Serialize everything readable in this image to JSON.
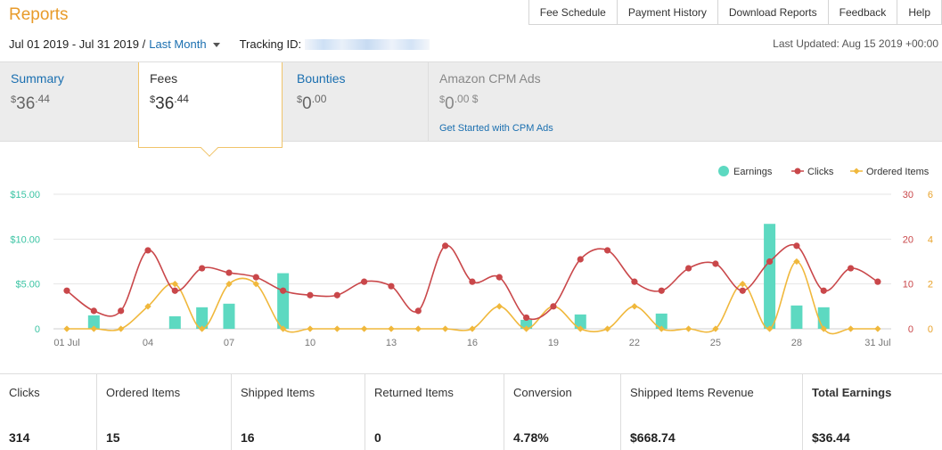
{
  "page_title": "Reports",
  "top_nav": [
    "Fee Schedule",
    "Payment History",
    "Download Reports",
    "Feedback",
    "Help"
  ],
  "date_range": {
    "range": "Jul 01 2019 - Jul 31 2019 /",
    "preset": "Last Month"
  },
  "tracking": {
    "label": "Tracking ID:"
  },
  "last_updated": "Last Updated: Aug 15 2019 +00:00",
  "tabs": {
    "summary": {
      "label": "Summary",
      "currency": "$",
      "dollars": "36",
      "cents": ".44"
    },
    "fees": {
      "label": "Fees",
      "currency": "$",
      "dollars": "36",
      "cents": ".44"
    },
    "bounties": {
      "label": "Bounties",
      "currency": "$",
      "dollars": "0",
      "cents": ".00"
    },
    "cpm": {
      "label": "Amazon CPM Ads",
      "currency": "$",
      "dollars": "0",
      "cents": ".00 $",
      "link": "Get Started with CPM Ads"
    }
  },
  "chart_data": {
    "type": "bar",
    "legend_placement": "top-right",
    "legend": [
      "Earnings",
      "Clicks",
      "Ordered Items"
    ],
    "colors": {
      "earnings": "#5dd9c1",
      "clicks": "#c9474a",
      "ordered": "#f0b83c"
    },
    "x_ticks": [
      "01 Jul",
      "04",
      "07",
      "10",
      "13",
      "16",
      "19",
      "22",
      "25",
      "28",
      "31 Jul"
    ],
    "y_left_ticks": [
      "$15.00",
      "$10.00",
      "$5.00",
      "0"
    ],
    "y_right_clicks_ticks": [
      "30",
      "20",
      "10",
      "0"
    ],
    "y_right_items_ticks": [
      "6",
      "4",
      "2",
      "0"
    ],
    "ylim_earnings": [
      0,
      15
    ],
    "ylim_clicks": [
      0,
      30
    ],
    "ylim_items": [
      0,
      6
    ],
    "days": [
      1,
      2,
      3,
      4,
      5,
      6,
      7,
      8,
      9,
      10,
      11,
      12,
      13,
      14,
      15,
      16,
      17,
      18,
      19,
      20,
      21,
      22,
      23,
      24,
      25,
      26,
      27,
      28,
      29,
      30,
      31
    ],
    "series": [
      {
        "name": "Earnings",
        "values": [
          0,
          1.5,
          0,
          0,
          1.4,
          2.4,
          2.8,
          0,
          6.2,
          0,
          0,
          0,
          0,
          0,
          0,
          0,
          0,
          1.0,
          0,
          1.6,
          0,
          0,
          1.7,
          0,
          0,
          0,
          11.7,
          2.6,
          2.4,
          0,
          0
        ]
      },
      {
        "name": "Clicks",
        "values": [
          8.5,
          4,
          4,
          17.5,
          8.5,
          13.5,
          12.5,
          11.5,
          8.5,
          7.5,
          7.5,
          10.5,
          9.5,
          4,
          18.5,
          10.5,
          11.5,
          2.5,
          5,
          15.5,
          17.5,
          10.5,
          8.5,
          13.5,
          14.5,
          8.5,
          15,
          18.5,
          8.5,
          13.5,
          10.5
        ]
      },
      {
        "name": "Ordered Items",
        "values": [
          0,
          0,
          0,
          1,
          2,
          0,
          2,
          2,
          0,
          0,
          0,
          0,
          0,
          0,
          0,
          0,
          1,
          0,
          1,
          0,
          0,
          1,
          0,
          0,
          0,
          2,
          0,
          3,
          0,
          0,
          0
        ]
      }
    ]
  },
  "stats": [
    {
      "label": "Clicks",
      "value": "314"
    },
    {
      "label": "Ordered Items",
      "value": "15"
    },
    {
      "label": "Shipped Items",
      "value": "16"
    },
    {
      "label": "Returned Items",
      "value": "0"
    },
    {
      "label": "Conversion",
      "value": "4.78%"
    },
    {
      "label": "Shipped Items Revenue",
      "value": "$668.74"
    },
    {
      "label": "Total Earnings",
      "value": "$36.44"
    }
  ]
}
